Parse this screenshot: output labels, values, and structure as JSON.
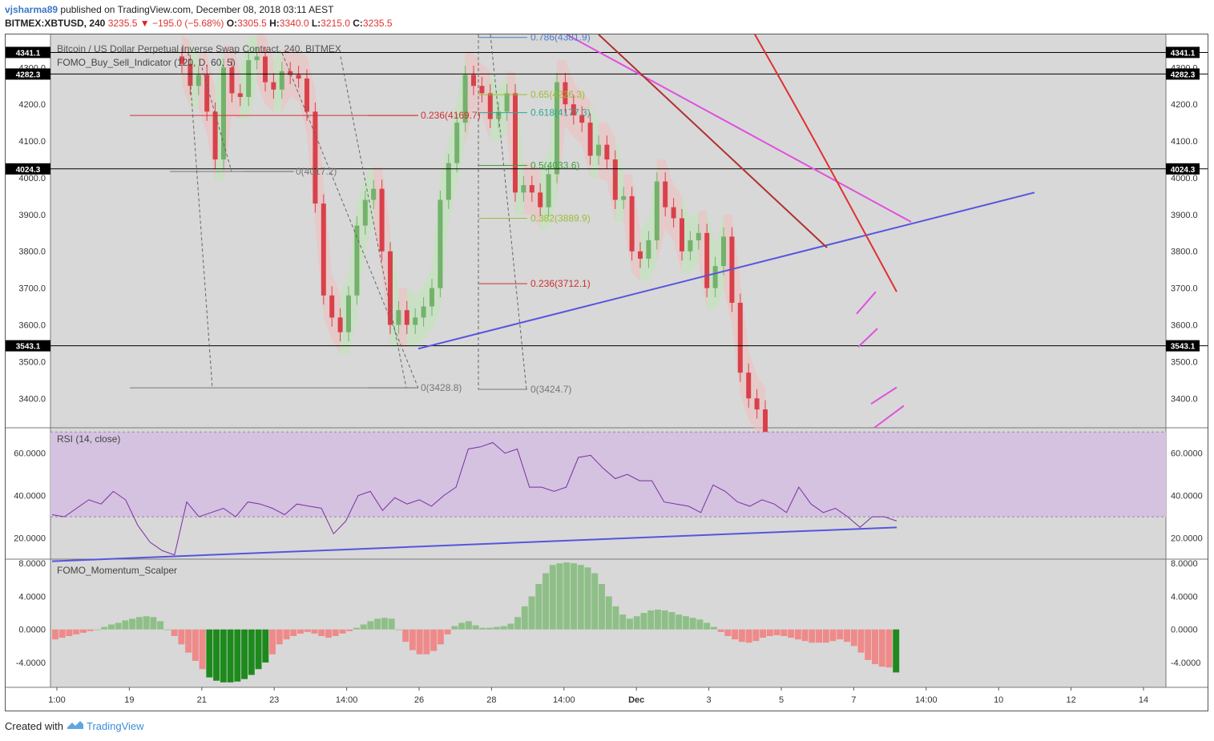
{
  "header": {
    "user": "vjsharma89",
    "published": "published on TradingView.com, December 08, 2018 03:11 AEST",
    "symbol": "BITMEX:XBTUSD, 240",
    "last": "3235.5",
    "change": "−195.0 (−5.68%)",
    "o_label": "O:",
    "o": "3305.5",
    "h_label": "H:",
    "h": "3340.0",
    "l_label": "L:",
    "l": "3215.0",
    "c_label": "C:",
    "c": "3235.5"
  },
  "footer": {
    "created_with": "Created with",
    "brand": "TradingView"
  },
  "colors": {
    "up": "#73b26b",
    "down": "#d9414a",
    "band_up": "#bfe6b7",
    "band_down": "#f0c0c0",
    "pane_bg": "#d8d8d8",
    "rsi_band": "#d4c2e0",
    "rsi_line": "#7b2fa3",
    "trend_blue": "#5555e0",
    "trend_pink": "#e050e0",
    "trend_red": "#e03030",
    "hist_up": "#8fbf88",
    "hist_up_strong": "#1e8a1e",
    "hist_down": "#ef8a8a"
  },
  "chart_data": [
    {
      "type": "candlestick",
      "title": "Bitcoin / US Dollar Perpetual Inverse Swap Contract, 240, BITMEX",
      "indicator_label": "FOMO_Buy_Sell_Indicator (120, D, 60, 5)",
      "ylim": [
        3320,
        4390
      ],
      "y_ticks": [
        "3400.0",
        "3500.0",
        "3600.0",
        "3700.0",
        "3800.0",
        "3900.0",
        "4000.0",
        "4100.0",
        "4200.0",
        "4300.0"
      ],
      "x_ticks": [
        "1:00",
        "19",
        "21",
        "23",
        "14:00",
        "26",
        "28",
        "14:00",
        "Dec",
        "3",
        "5",
        "7",
        "14:00",
        "10",
        "12",
        "14"
      ],
      "horizontal_levels": [
        "4341.1",
        "4282.3",
        "4024.3",
        "3543.1"
      ],
      "fib_labels": [
        "0.786(4381.9)",
        "0.65(4226.3)",
        "0.618(4177.3)",
        "0.5(4033.6)",
        "0.382(3889.9)",
        "0.236(3712.1)",
        "0(3424.7)",
        "0.236(4169.7)",
        "0(4017.2)",
        "0(3428.8)"
      ],
      "closes": [
        4310,
        4250,
        4280,
        4180,
        4050,
        4300,
        4230,
        4220,
        4320,
        4330,
        4260,
        4240,
        4290,
        4280,
        4270,
        4180,
        3930,
        3680,
        3620,
        3580,
        3680,
        3870,
        3940,
        3970,
        3800,
        3600,
        3640,
        3600,
        3620,
        3650,
        3700,
        3940,
        4040,
        4150,
        4280,
        4250,
        4230,
        4160,
        4180,
        4230,
        3960,
        3980,
        3960,
        3920,
        4010,
        4260,
        4200,
        4170,
        4150,
        4060,
        4090,
        4050,
        3940,
        3950,
        3800,
        3780,
        3830,
        3990,
        3920,
        3890,
        3800,
        3830,
        3850,
        3700,
        3760,
        3840,
        3660,
        3470,
        3400,
        3370,
        3240
      ],
      "rsi": {
        "label": "RSI (14, close)",
        "band": [
          30,
          70
        ],
        "ylim": [
          10,
          72
        ],
        "y_ticks": [
          "20.0000",
          "40.0000",
          "60.0000"
        ],
        "values": [
          31,
          30,
          34,
          38,
          36,
          42,
          38,
          26,
          18,
          14,
          12,
          37,
          30,
          32,
          34,
          30,
          37,
          36,
          34,
          31,
          36,
          35,
          34,
          22,
          28,
          40,
          42,
          33,
          39,
          36,
          38,
          35,
          40,
          44,
          62,
          63,
          65,
          60,
          62,
          44,
          44,
          42,
          44,
          58,
          59,
          53,
          48,
          50,
          47,
          47,
          37,
          36,
          35,
          32,
          45,
          42,
          37,
          35,
          38,
          36,
          32,
          44,
          36,
          32,
          34,
          30,
          25,
          30,
          30,
          28
        ],
        "trendline": [
          9,
          25
        ]
      },
      "momentum": {
        "label": "FOMO_Momentum_Scalper",
        "ylim": [
          -7,
          8.5
        ],
        "y_ticks": [
          "8.0000",
          "4.0000",
          "0.0000",
          "-4.0000"
        ],
        "values": [
          -1.2,
          -1.0,
          -0.8,
          -0.6,
          -0.4,
          -0.2,
          0.0,
          0.3,
          0.6,
          0.8,
          1.1,
          1.3,
          1.5,
          1.6,
          1.5,
          1.0,
          0.0,
          -0.8,
          -1.8,
          -2.8,
          -3.8,
          -4.8,
          -5.8,
          -6.2,
          -6.4,
          -6.4,
          -6.3,
          -6.0,
          -5.5,
          -4.8,
          -4.0,
          -3.0,
          -1.8,
          -1.2,
          -0.8,
          -0.5,
          -0.3,
          -0.5,
          -0.8,
          -1.0,
          -0.8,
          -0.5,
          -0.2,
          0.2,
          0.6,
          1.0,
          1.3,
          1.4,
          1.3,
          0.0,
          -1.5,
          -2.5,
          -3.0,
          -3.0,
          -2.6,
          -1.8,
          -0.6,
          0.4,
          0.8,
          1.0,
          0.5,
          0.2,
          0.2,
          0.3,
          0.4,
          0.7,
          1.5,
          2.8,
          4.0,
          5.5,
          6.8,
          7.8,
          8.0,
          8.1,
          8.0,
          7.8,
          7.5,
          6.8,
          5.5,
          4.0,
          2.8,
          1.8,
          1.3,
          1.6,
          2.0,
          2.3,
          2.4,
          2.3,
          2.1,
          1.8,
          1.6,
          1.4,
          1.2,
          0.8,
          0.3,
          -0.3,
          -0.8,
          -1.2,
          -1.5,
          -1.6,
          -1.4,
          -1.0,
          -0.8,
          -0.7,
          -0.8,
          -1.0,
          -1.2,
          -1.4,
          -1.6,
          -1.6,
          -1.6,
          -1.4,
          -1.2,
          -1.5,
          -2.0,
          -2.8,
          -3.7,
          -4.2,
          -4.5,
          -4.6,
          -5.2
        ]
      }
    }
  ]
}
